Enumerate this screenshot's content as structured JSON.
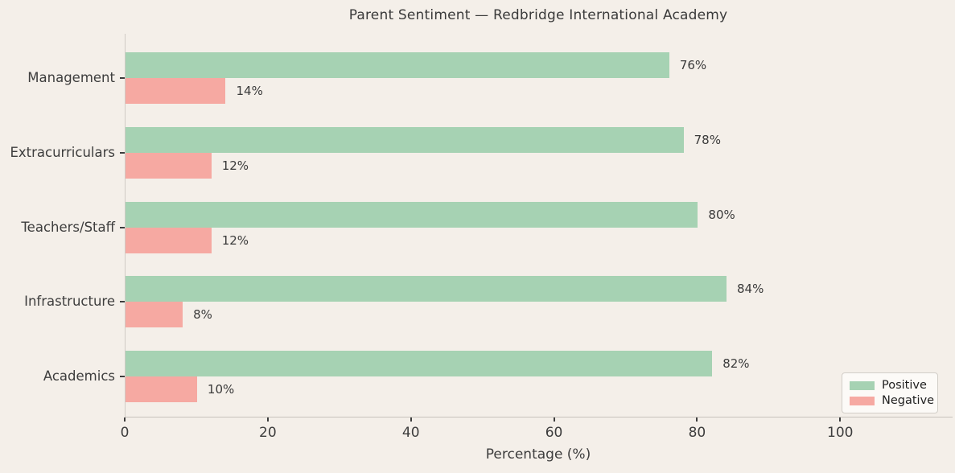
{
  "colors": {
    "background": "#f4efe9",
    "positive": "#a6d2b3",
    "negative": "#f6a9a2",
    "text": "#3d3d3d",
    "spine": "#cfcbc5"
  },
  "chart_data": {
    "type": "bar",
    "orientation": "horizontal",
    "title": "Parent Sentiment — Redbridge International Academy",
    "categories_top_to_bottom": [
      "Management",
      "Extracurriculars",
      "Teachers/Staff",
      "Infrastructure",
      "Academics"
    ],
    "series": [
      {
        "name": "Positive",
        "color": "#a6d2b3",
        "values": [
          76,
          78,
          80,
          84,
          82
        ]
      },
      {
        "name": "Negative",
        "color": "#f6a9a2",
        "values": [
          14,
          12,
          12,
          8,
          10
        ]
      }
    ],
    "value_label_format": "{v}%",
    "value_labels": {
      "positive": [
        "76%",
        "78%",
        "80%",
        "84%",
        "82%"
      ],
      "negative": [
        "14%",
        "12%",
        "12%",
        "8%",
        "10%"
      ]
    },
    "xlabel": "Percentage (%)",
    "x_ticks": [
      0,
      20,
      40,
      60,
      80,
      100
    ],
    "xlim": [
      0,
      115.6
    ],
    "grid": false,
    "legend": {
      "position": "lower right",
      "entries": [
        "Positive",
        "Negative"
      ]
    }
  }
}
